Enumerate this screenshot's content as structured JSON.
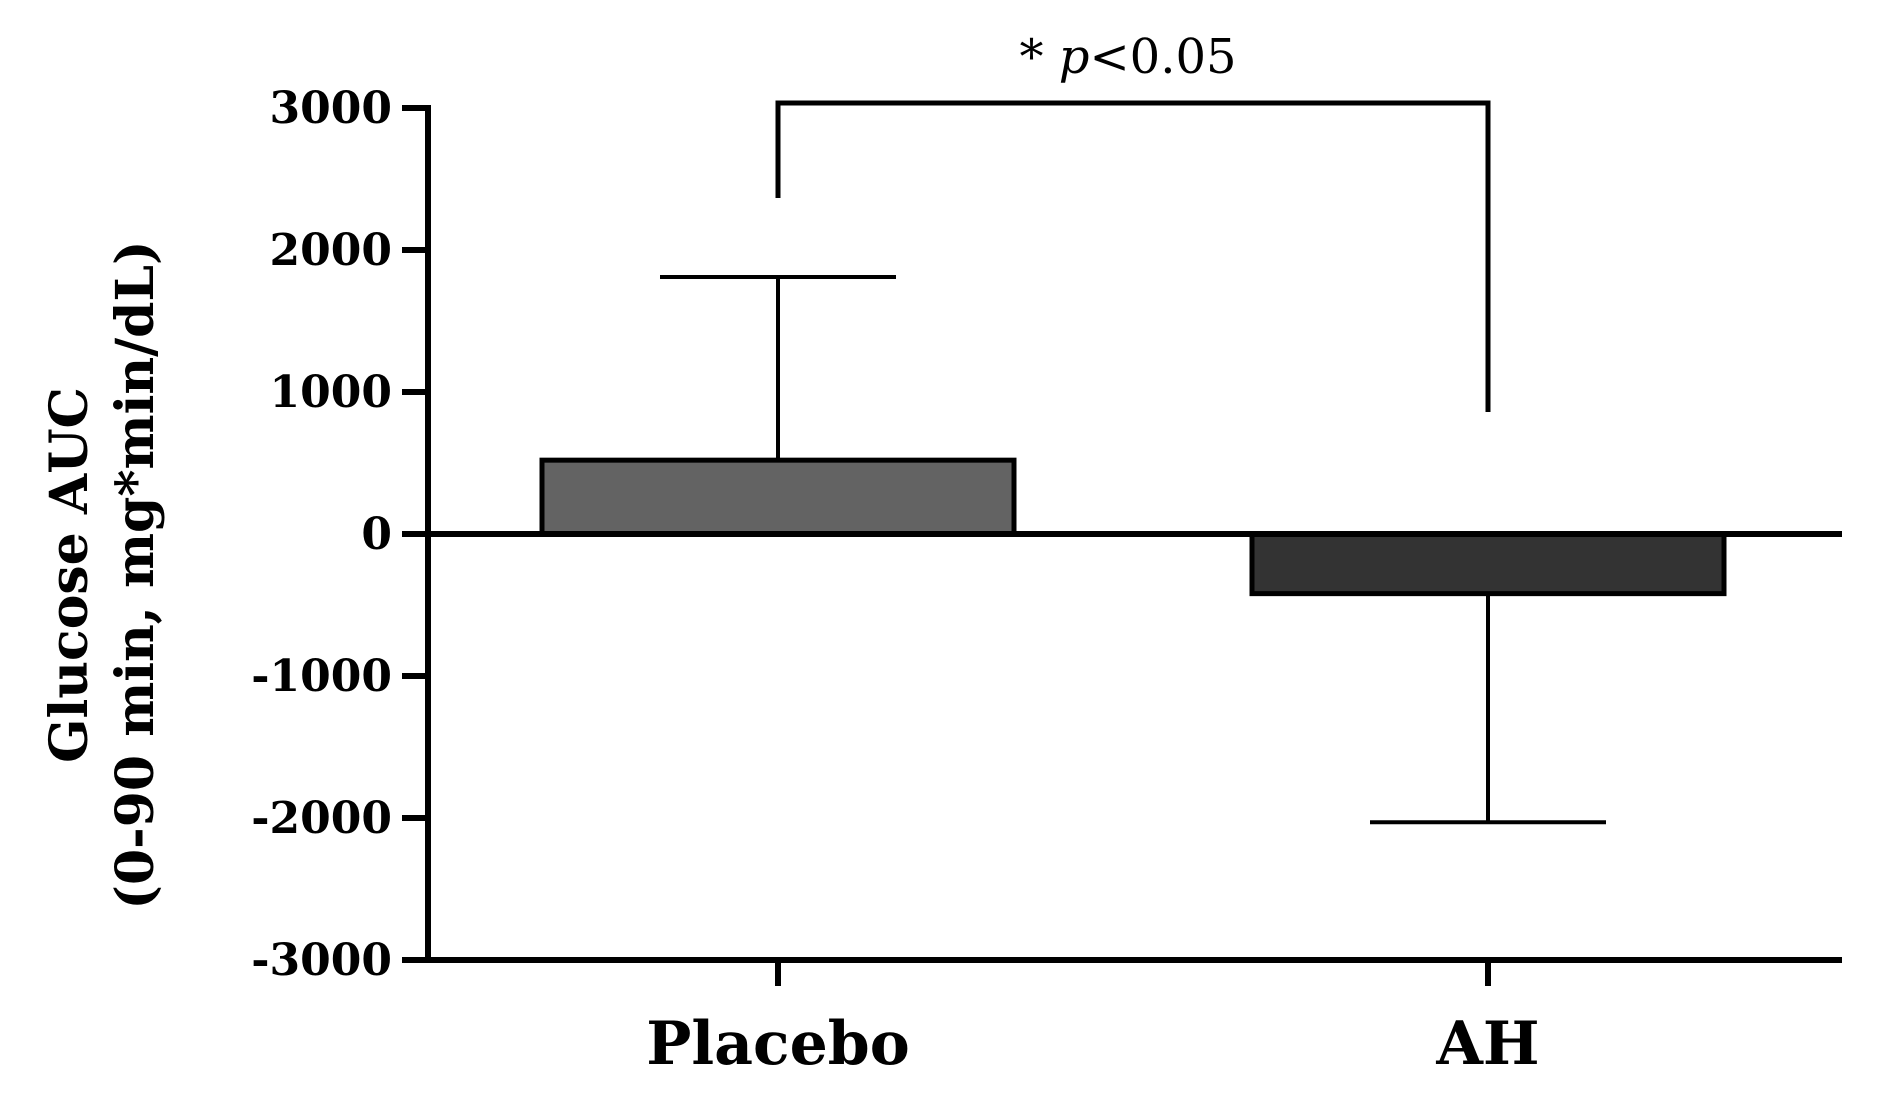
{
  "chart_data": {
    "type": "bar",
    "categories": [
      "Placebo",
      "AH"
    ],
    "values": [
      520,
      -420
    ],
    "error_bars": [
      1290,
      1610
    ],
    "bar_colors": [
      "#636363",
      "#333333"
    ],
    "ylabel_line1": "Glucose AUC",
    "ylabel_line2": "(0-90 min, mg*min/dL)",
    "ylim": [
      -3000,
      3000
    ],
    "yticks": [
      3000,
      2000,
      1000,
      0,
      -1000,
      -2000,
      -3000
    ],
    "ytick_labels": [
      "3000",
      "2000",
      "1000",
      "0",
      "-1000",
      "-2000",
      "-3000"
    ],
    "grid": false,
    "significance": {
      "star": "*",
      "p_symbol": "p",
      "rest": "<0.05",
      "between": [
        "Placebo",
        "AH"
      ]
    }
  }
}
